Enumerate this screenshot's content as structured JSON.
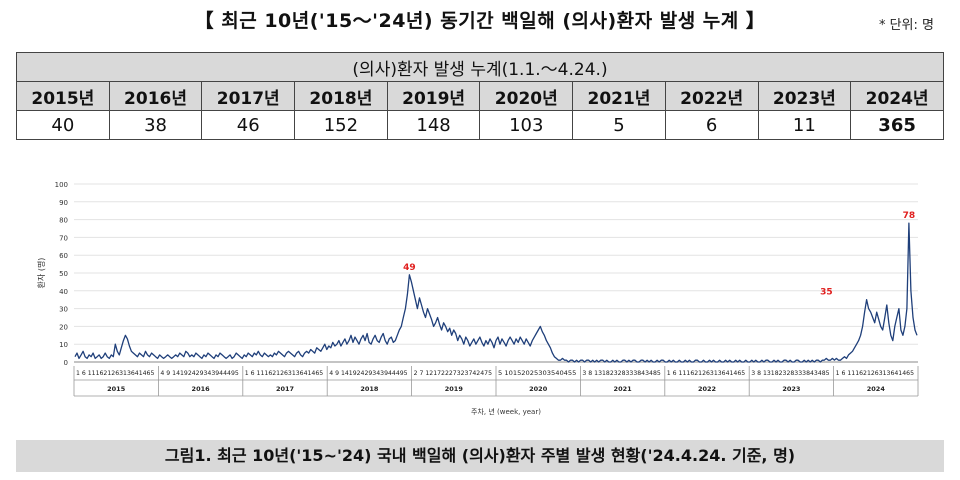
{
  "header": {
    "title": "【 최근 10년('15～'24년) 동기간 백일해 (의사)환자 발생 누계 】",
    "unit": "* 단위: 명"
  },
  "table": {
    "caption": "(의사)환자 발생 누계(1.1.～4.24.)",
    "years": [
      "2015년",
      "2016년",
      "2017년",
      "2018년",
      "2019년",
      "2020년",
      "2021년",
      "2022년",
      "2023년",
      "2024년"
    ],
    "values": [
      "40",
      "38",
      "46",
      "152",
      "148",
      "103",
      "5",
      "6",
      "11",
      "365"
    ]
  },
  "chart_data": {
    "type": "line",
    "ylabel": "환자 (명)",
    "xlabel": "주차, 년 (week, year)",
    "ylim": [
      0,
      100
    ],
    "yticks": [
      0,
      10,
      20,
      30,
      40,
      50,
      60,
      70,
      80,
      90,
      100
    ],
    "years": [
      "2015",
      "2016",
      "2017",
      "2018",
      "2019",
      "2020",
      "2021",
      "2022",
      "2023",
      "2024"
    ],
    "week_labels": [
      "1 6 11162126313641465",
      "4 9 14192429343944495",
      "1 6 11162126313641465",
      "4 9 14192429343944495",
      "2 7 12172227323742475",
      "5 10152025303540455",
      "3 8 13182328333843485",
      "1 6 11162126313641465",
      "3 8 13182328333843485",
      "1 6 11162126313641465"
    ],
    "series": [
      {
        "color": "#1f3f7a",
        "values": [
          3,
          5,
          2,
          4,
          6,
          3,
          2,
          4,
          3,
          5,
          2,
          3,
          4,
          2,
          3,
          5,
          3,
          2,
          4,
          3,
          10,
          6,
          4,
          8,
          12,
          15,
          13,
          9,
          6,
          5,
          4,
          3,
          5,
          4,
          3,
          6,
          4,
          3,
          5,
          4,
          3,
          2,
          4,
          3,
          2,
          3,
          4,
          3,
          2,
          3,
          4,
          3,
          5,
          4,
          3,
          6,
          5,
          3,
          4,
          3,
          5,
          4,
          3,
          2,
          4,
          3,
          5,
          4,
          3,
          2,
          4,
          3,
          5,
          4,
          3,
          2,
          3,
          4,
          2,
          3,
          5,
          4,
          3,
          2,
          4,
          3,
          5,
          4,
          3,
          5,
          4,
          6,
          4,
          3,
          5,
          4,
          3,
          4,
          3,
          5,
          4,
          6,
          5,
          4,
          3,
          5,
          6,
          5,
          4,
          3,
          5,
          6,
          4,
          3,
          5,
          6,
          5,
          7,
          6,
          5,
          8,
          7,
          6,
          8,
          10,
          7,
          9,
          8,
          11,
          9,
          10,
          12,
          9,
          11,
          13,
          10,
          12,
          15,
          11,
          14,
          12,
          10,
          13,
          15,
          12,
          16,
          11,
          10,
          13,
          15,
          12,
          11,
          14,
          16,
          12,
          10,
          13,
          14,
          11,
          12,
          15,
          18,
          20,
          25,
          30,
          38,
          49,
          45,
          40,
          35,
          30,
          36,
          32,
          28,
          25,
          30,
          27,
          24,
          20,
          22,
          25,
          21,
          18,
          22,
          20,
          17,
          19,
          15,
          18,
          16,
          12,
          15,
          13,
          10,
          14,
          12,
          9,
          11,
          13,
          10,
          12,
          14,
          11,
          9,
          12,
          10,
          13,
          11,
          8,
          12,
          14,
          10,
          13,
          11,
          9,
          12,
          14,
          12,
          10,
          13,
          11,
          14,
          12,
          10,
          13,
          11,
          9,
          12,
          14,
          16,
          18,
          20,
          17,
          15,
          12,
          10,
          8,
          5,
          3,
          2,
          1,
          1,
          2,
          1,
          1,
          0,
          1,
          1,
          0,
          1,
          0,
          1,
          1,
          0,
          1,
          1,
          0,
          1,
          0,
          1,
          0,
          1,
          1,
          0,
          1,
          0,
          0,
          1,
          0,
          1,
          0,
          0,
          1,
          1,
          0,
          1,
          0,
          1,
          1,
          0,
          0,
          1,
          1,
          0,
          1,
          0,
          1,
          0,
          0,
          1,
          0,
          1,
          1,
          0,
          0,
          1,
          0,
          1,
          0,
          0,
          1,
          0,
          0,
          1,
          0,
          1,
          0,
          0,
          1,
          1,
          0,
          0,
          1,
          0,
          0,
          1,
          0,
          1,
          0,
          0,
          1,
          0,
          0,
          1,
          0,
          1,
          0,
          0,
          1,
          0,
          1,
          0,
          0,
          1,
          0,
          0,
          1,
          0,
          1,
          0,
          0,
          1,
          0,
          1,
          1,
          0,
          0,
          1,
          0,
          1,
          0,
          0,
          1,
          1,
          0,
          1,
          0,
          0,
          1,
          1,
          0,
          0,
          1,
          0,
          1,
          0,
          1,
          0,
          1,
          1,
          0,
          1,
          1,
          2,
          1,
          1,
          2,
          1,
          2,
          1,
          1,
          2,
          3,
          2,
          4,
          5,
          6,
          8,
          10,
          12,
          15,
          20,
          28,
          35,
          30,
          28,
          25,
          22,
          28,
          24,
          20,
          18,
          25,
          32,
          22,
          15,
          12,
          20,
          25,
          30,
          18,
          15,
          20,
          30,
          78,
          40,
          25,
          18,
          15
        ]
      }
    ],
    "annotations": [
      {
        "year": "2018",
        "value": 49,
        "label": "49"
      },
      {
        "year": "2023",
        "value": 35,
        "label": "35"
      },
      {
        "year": "2024",
        "value": 78,
        "label": "78"
      }
    ]
  },
  "footer": {
    "caption": "그림1. 최근 10년('15~'24) 국내 백일해 (의사)환자 주별 발생 현황('24.4.24. 기준, 명)"
  }
}
